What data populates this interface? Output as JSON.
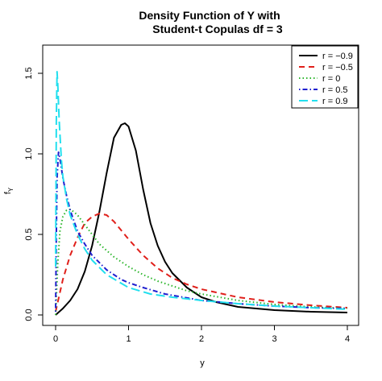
{
  "chart_data": {
    "type": "line",
    "title_line1": "Density Function of Y with",
    "title_line2": "Student-t Copulas df = 3",
    "xlabel": "y",
    "ylabel": "f",
    "ylabel_sub": "Y",
    "xlim": [
      0,
      4
    ],
    "ylim": [
      0,
      1.6
    ],
    "x_ticks": [
      "0",
      "1",
      "2",
      "3",
      "4"
    ],
    "y_ticks": [
      "0.0",
      "0.5",
      "1.0",
      "1.5"
    ],
    "grid": false,
    "legend_position": "top-right",
    "series": [
      {
        "name": "r = −0.9",
        "color": "#000000",
        "dash": "solid",
        "x": [
          0.0,
          0.1,
          0.2,
          0.3,
          0.4,
          0.5,
          0.6,
          0.7,
          0.8,
          0.9,
          0.95,
          1.0,
          1.1,
          1.2,
          1.3,
          1.4,
          1.5,
          1.6,
          1.8,
          2.0,
          2.2,
          2.5,
          3.0,
          3.5,
          4.0
        ],
        "y": [
          0.0,
          0.04,
          0.09,
          0.16,
          0.27,
          0.43,
          0.64,
          0.88,
          1.1,
          1.18,
          1.19,
          1.17,
          1.02,
          0.78,
          0.57,
          0.43,
          0.33,
          0.26,
          0.17,
          0.11,
          0.08,
          0.05,
          0.03,
          0.02,
          0.015
        ]
      },
      {
        "name": "r = −0.5",
        "color": "#e0201b",
        "dash": "dashed",
        "x": [
          0.0,
          0.05,
          0.1,
          0.2,
          0.3,
          0.4,
          0.5,
          0.6,
          0.7,
          0.8,
          1.0,
          1.2,
          1.4,
          1.6,
          1.8,
          2.0,
          2.5,
          3.0,
          3.5,
          4.0
        ],
        "y": [
          0.02,
          0.12,
          0.22,
          0.37,
          0.48,
          0.57,
          0.61,
          0.63,
          0.62,
          0.58,
          0.47,
          0.37,
          0.29,
          0.23,
          0.19,
          0.16,
          0.11,
          0.08,
          0.06,
          0.045
        ]
      },
      {
        "name": "r = 0",
        "color": "#2bb52b",
        "dash": "dotted",
        "x": [
          0.0,
          0.03,
          0.06,
          0.1,
          0.15,
          0.2,
          0.25,
          0.3,
          0.4,
          0.5,
          0.6,
          0.8,
          1.0,
          1.2,
          1.4,
          1.6,
          1.8,
          2.0,
          2.5,
          3.0,
          3.5,
          4.0
        ],
        "y": [
          0.0,
          0.32,
          0.52,
          0.61,
          0.65,
          0.655,
          0.64,
          0.62,
          0.56,
          0.5,
          0.44,
          0.36,
          0.3,
          0.25,
          0.21,
          0.18,
          0.15,
          0.13,
          0.09,
          0.065,
          0.05,
          0.04
        ]
      },
      {
        "name": "r = 0.5",
        "color": "#1f1fcf",
        "dash": "dashdot",
        "x": [
          0.0,
          0.01,
          0.02,
          0.04,
          0.06,
          0.1,
          0.15,
          0.2,
          0.3,
          0.4,
          0.5,
          0.7,
          0.9,
          1.0,
          1.2,
          1.5,
          2.0,
          2.5,
          3.0,
          3.5,
          4.0
        ],
        "y": [
          0.02,
          0.5,
          0.85,
          1.01,
          0.97,
          0.85,
          0.74,
          0.65,
          0.52,
          0.44,
          0.37,
          0.28,
          0.22,
          0.2,
          0.17,
          0.13,
          0.09,
          0.07,
          0.055,
          0.045,
          0.04
        ]
      },
      {
        "name": "r = 0.9",
        "color": "#22dfee",
        "dash": "longdash",
        "x": [
          0.0,
          0.01,
          0.02,
          0.03,
          0.05,
          0.08,
          0.1,
          0.15,
          0.2,
          0.3,
          0.4,
          0.5,
          0.7,
          1.0,
          1.3,
          1.6,
          2.0,
          2.5,
          3.0,
          3.5,
          4.0
        ],
        "y": [
          0.3,
          1.2,
          1.51,
          1.43,
          1.2,
          0.96,
          0.86,
          0.72,
          0.62,
          0.5,
          0.41,
          0.34,
          0.25,
          0.17,
          0.13,
          0.11,
          0.09,
          0.07,
          0.055,
          0.045,
          0.035
        ]
      }
    ]
  }
}
